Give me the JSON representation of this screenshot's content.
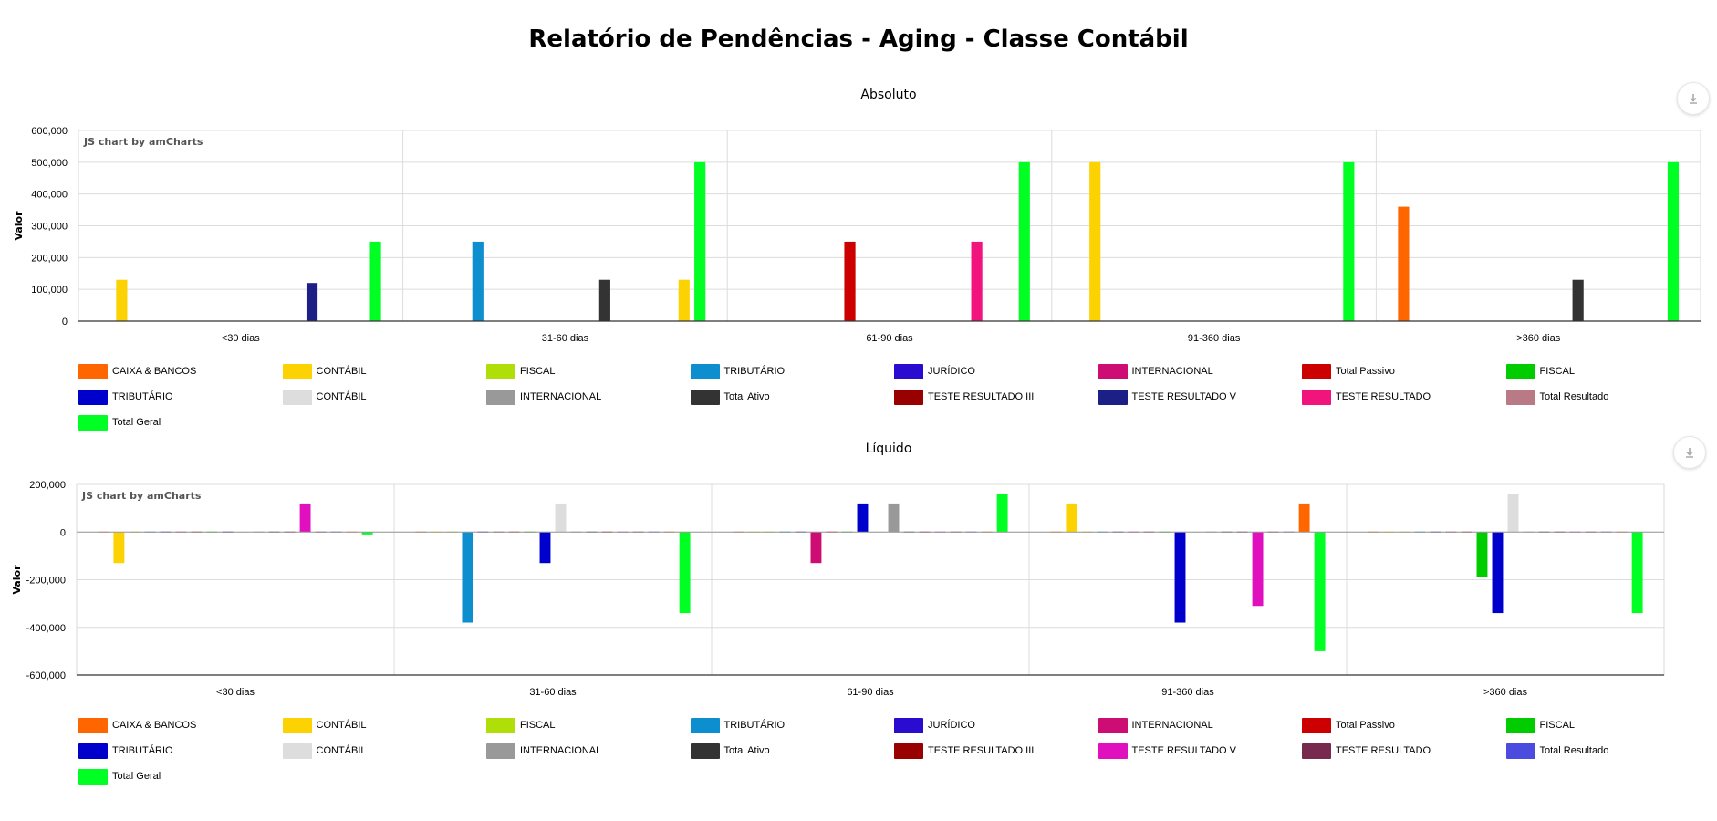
{
  "page_title": "Relatório de Pendências - Aging - Classe Contábil",
  "credit": "JS chart by amCharts",
  "download_icon": "download-icon",
  "chart_data": [
    {
      "type": "bar",
      "title": "Absoluto",
      "ylabel": "Valor",
      "xlabel": "",
      "ylim": [
        0,
        600000
      ],
      "yticks": [
        0,
        100000,
        200000,
        300000,
        400000,
        500000,
        600000
      ],
      "ytick_labels": [
        "0",
        "100,000",
        "200,000",
        "300,000",
        "400,000",
        "500,000",
        "600,000"
      ],
      "categories": [
        "<30 dias",
        "31-60 dias",
        "61-90 dias",
        "91-360 dias",
        ">360 dias"
      ],
      "grid": true,
      "legend_position": "bottom",
      "series": [
        {
          "name": "CAIXA & BANCOS",
          "color": "#FF6600",
          "values": [
            0,
            0,
            0,
            0,
            360000
          ]
        },
        {
          "name": "CONTÁBIL",
          "color": "#FCD202",
          "values": [
            130000,
            0,
            0,
            500000,
            0
          ]
        },
        {
          "name": "FISCAL",
          "color": "#B0DE09",
          "values": [
            0,
            0,
            0,
            0,
            0
          ]
        },
        {
          "name": "TRIBUTÁRIO",
          "color": "#0D8ECF",
          "values": [
            0,
            250000,
            0,
            0,
            0
          ]
        },
        {
          "name": "JURÍDICO",
          "color": "#2A0CD0",
          "values": [
            0,
            0,
            0,
            0,
            0
          ]
        },
        {
          "name": "INTERNACIONAL",
          "color": "#CD0D74",
          "values": [
            0,
            0,
            0,
            0,
            0
          ]
        },
        {
          "name": "Total Passivo",
          "color": "#CC0000",
          "values": [
            0,
            0,
            250000,
            0,
            0
          ]
        },
        {
          "name": "FISCAL",
          "color": "#00CC00",
          "values": [
            0,
            0,
            0,
            0,
            0
          ]
        },
        {
          "name": "TRIBUTÁRIO",
          "color": "#0000CC",
          "values": [
            0,
            0,
            0,
            0,
            0
          ]
        },
        {
          "name": "CONTÁBIL",
          "color": "#DDDDDD",
          "values": [
            0,
            0,
            0,
            0,
            0
          ]
        },
        {
          "name": "INTERNACIONAL",
          "color": "#999999",
          "values": [
            0,
            0,
            0,
            0,
            0
          ]
        },
        {
          "name": "Total Ativo",
          "color": "#333333",
          "values": [
            0,
            130000,
            0,
            0,
            130000
          ]
        },
        {
          "name": "TESTE RESULTADO III",
          "color": "#990000",
          "values": [
            0,
            0,
            0,
            0,
            0
          ]
        },
        {
          "name": "TESTE RESULTADO V",
          "color": "#1B1F86",
          "values": [
            120000,
            0,
            0,
            0,
            0
          ]
        },
        {
          "name": "TESTE RESULTADO",
          "color": "#F0147C",
          "values": [
            0,
            0,
            250000,
            0,
            0
          ]
        },
        {
          "name": "Total Resultado",
          "color": "#B97A85",
          "values": [
            0,
            0,
            0,
            0,
            0
          ]
        },
        {
          "name": "CONTÁBIL",
          "color": "#FCD202",
          "values": [
            0,
            130000,
            0,
            0,
            0
          ]
        },
        {
          "name": "Total Geral",
          "color": "#00FF22",
          "values": [
            250000,
            500000,
            500000,
            500000,
            500000
          ]
        }
      ],
      "legend": [
        {
          "name": "CAIXA & BANCOS",
          "color": "#FF6600"
        },
        {
          "name": "CONTÁBIL",
          "color": "#FCD202"
        },
        {
          "name": "FISCAL",
          "color": "#B0DE09"
        },
        {
          "name": "TRIBUTÁRIO",
          "color": "#0D8ECF"
        },
        {
          "name": "JURÍDICO",
          "color": "#2A0CD0"
        },
        {
          "name": "INTERNACIONAL",
          "color": "#CD0D74"
        },
        {
          "name": "Total Passivo",
          "color": "#CC0000"
        },
        {
          "name": "FISCAL",
          "color": "#00CC00"
        },
        {
          "name": "TRIBUTÁRIO",
          "color": "#0000CC"
        },
        {
          "name": "CONTÁBIL",
          "color": "#DDDDDD"
        },
        {
          "name": "INTERNACIONAL",
          "color": "#999999"
        },
        {
          "name": "Total Ativo",
          "color": "#333333"
        },
        {
          "name": "TESTE RESULTADO III",
          "color": "#990000"
        },
        {
          "name": "TESTE RESULTADO V",
          "color": "#1B1F86"
        },
        {
          "name": "TESTE RESULTADO",
          "color": "#F0147C"
        },
        {
          "name": "Total Resultado",
          "color": "#B97A85"
        },
        {
          "name": "Total Geral",
          "color": "#00FF22"
        }
      ]
    },
    {
      "type": "bar",
      "title": "Líquido",
      "ylabel": "Valor",
      "xlabel": "",
      "ylim": [
        -600000,
        200000
      ],
      "yticks": [
        -600000,
        -400000,
        -200000,
        0,
        200000
      ],
      "ytick_labels": [
        "-600,000",
        "-400,000",
        "-200,000",
        "0",
        "200,000"
      ],
      "categories": [
        "<30 dias",
        "31-60 dias",
        "61-90 dias",
        "91-360 dias",
        ">360 dias"
      ],
      "grid": true,
      "legend_position": "bottom",
      "series": [
        {
          "name": "CAIXA & BANCOS",
          "color": "#FF6600",
          "values": [
            0,
            0,
            0,
            0,
            0
          ]
        },
        {
          "name": "CONTÁBIL",
          "color": "#FCD202",
          "values": [
            -130000,
            0,
            0,
            120000,
            0
          ]
        },
        {
          "name": "FISCAL",
          "color": "#B0DE09",
          "values": [
            0,
            0,
            0,
            0,
            0
          ]
        },
        {
          "name": "TRIBUTÁRIO",
          "color": "#0D8ECF",
          "values": [
            0,
            -380000,
            0,
            0,
            0
          ]
        },
        {
          "name": "JURÍDICO",
          "color": "#2A0CD0",
          "values": [
            0,
            0,
            0,
            0,
            0
          ]
        },
        {
          "name": "INTERNACIONAL",
          "color": "#CD0D74",
          "values": [
            0,
            0,
            -130000,
            0,
            0
          ]
        },
        {
          "name": "Total Passivo",
          "color": "#CC0000",
          "values": [
            0,
            0,
            0,
            0,
            0
          ]
        },
        {
          "name": "FISCAL",
          "color": "#00CC00",
          "values": [
            0,
            0,
            0,
            0,
            -190000
          ]
        },
        {
          "name": "TRIBUTÁRIO",
          "color": "#0000CC",
          "values": [
            0,
            -130000,
            120000,
            -380000,
            -340000
          ]
        },
        {
          "name": "CONTÁBIL",
          "color": "#DDDDDD",
          "values": [
            0,
            120000,
            0,
            0,
            160000
          ]
        },
        {
          "name": "INTERNACIONAL",
          "color": "#999999",
          "values": [
            0,
            0,
            120000,
            0,
            0
          ]
        },
        {
          "name": "Total Ativo",
          "color": "#333333",
          "values": [
            0,
            0,
            0,
            0,
            0
          ]
        },
        {
          "name": "TESTE RESULTADO III",
          "color": "#990000",
          "values": [
            0,
            0,
            0,
            0,
            0
          ]
        },
        {
          "name": "TESTE RESULTADO V",
          "color": "#E010BE",
          "values": [
            120000,
            0,
            0,
            -310000,
            0
          ]
        },
        {
          "name": "TESTE RESULTADO",
          "color": "#782A4E",
          "values": [
            0,
            0,
            0,
            0,
            0
          ]
        },
        {
          "name": "Total Resultado",
          "color": "#4B4BE0",
          "values": [
            0,
            0,
            0,
            0,
            0
          ]
        },
        {
          "name": "CAIXA & BANCOS",
          "color": "#FF6600",
          "values": [
            0,
            0,
            0,
            120000,
            0
          ]
        },
        {
          "name": "Total Geral",
          "color": "#00FF22",
          "values": [
            -10000,
            -340000,
            160000,
            -500000,
            -340000
          ]
        }
      ],
      "legend": [
        {
          "name": "CAIXA & BANCOS",
          "color": "#FF6600"
        },
        {
          "name": "CONTÁBIL",
          "color": "#FCD202"
        },
        {
          "name": "FISCAL",
          "color": "#B0DE09"
        },
        {
          "name": "TRIBUTÁRIO",
          "color": "#0D8ECF"
        },
        {
          "name": "JURÍDICO",
          "color": "#2A0CD0"
        },
        {
          "name": "INTERNACIONAL",
          "color": "#CD0D74"
        },
        {
          "name": "Total Passivo",
          "color": "#CC0000"
        },
        {
          "name": "FISCAL",
          "color": "#00CC00"
        },
        {
          "name": "TRIBUTÁRIO",
          "color": "#0000CC"
        },
        {
          "name": "CONTÁBIL",
          "color": "#DDDDDD"
        },
        {
          "name": "INTERNACIONAL",
          "color": "#999999"
        },
        {
          "name": "Total Ativo",
          "color": "#333333"
        },
        {
          "name": "TESTE RESULTADO III",
          "color": "#990000"
        },
        {
          "name": "TESTE RESULTADO V",
          "color": "#E010BE"
        },
        {
          "name": "TESTE RESULTADO",
          "color": "#782A4E"
        },
        {
          "name": "Total Resultado",
          "color": "#4B4BE0"
        },
        {
          "name": "Total Geral",
          "color": "#00FF22"
        }
      ]
    }
  ]
}
